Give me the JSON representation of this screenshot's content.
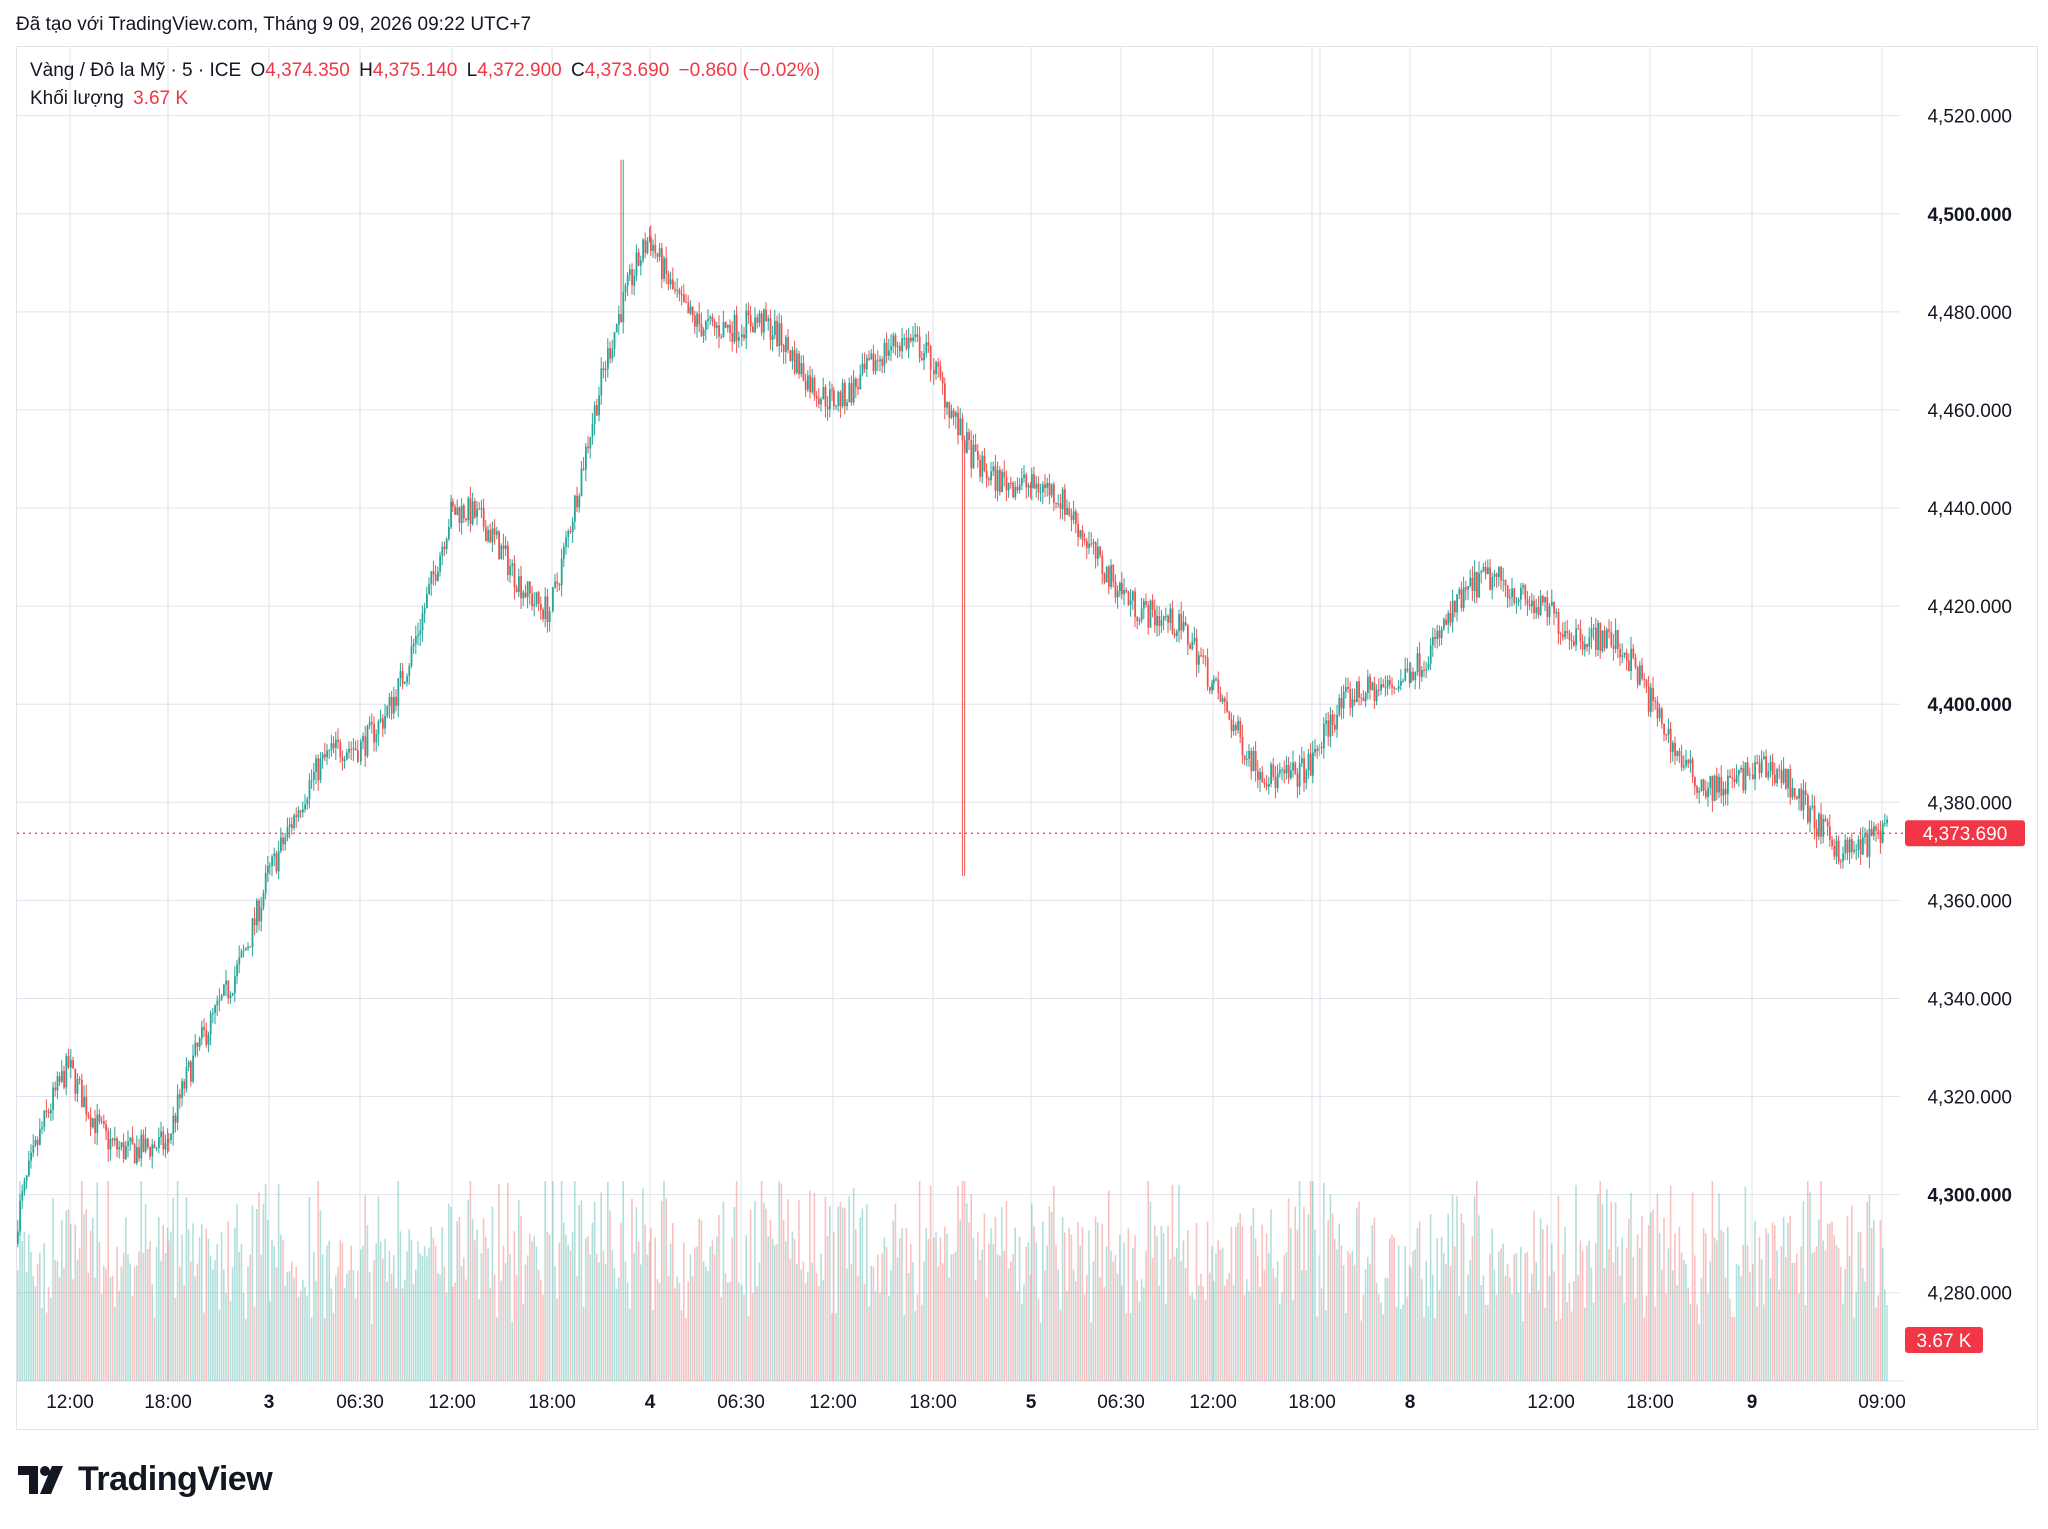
{
  "header": {
    "created_with": "Đã tạo với TradingView.com, Tháng 9 09, 2026 09:22 UTC+7"
  },
  "legend": {
    "symbol": "Vàng / Đô la Mỹ · 5 · ICE",
    "open_label": "O",
    "open_value": "4,374.350",
    "high_label": "H",
    "high_value": "4,375.140",
    "low_label": "L",
    "low_value": "4,372.900",
    "close_label": "C",
    "close_value": "4,373.690",
    "change": "−0.860 (−0.02%)",
    "volume_label": "Khối lượng",
    "volume_value": "3.67 K"
  },
  "brand": {
    "name": "TradingView"
  },
  "colors": {
    "up": "#26a69a",
    "down": "#ef5350",
    "grid": "#e0e3eb",
    "price_tag": "#f23645",
    "text": "#131722"
  },
  "chart_data": {
    "type": "candlestick",
    "title": "Vàng / Đô la Mỹ · 5 · ICE",
    "ylim": [
      4262,
      4534
    ],
    "y_ticks": [
      {
        "value": 4280,
        "label": "4,280.000",
        "bold": false
      },
      {
        "value": 4300,
        "label": "4,300.000",
        "bold": true
      },
      {
        "value": 4320,
        "label": "4,320.000",
        "bold": false
      },
      {
        "value": 4340,
        "label": "4,340.000",
        "bold": false
      },
      {
        "value": 4360,
        "label": "4,360.000",
        "bold": false
      },
      {
        "value": 4380,
        "label": "4,380.000",
        "bold": false
      },
      {
        "value": 4400,
        "label": "4,400.000",
        "bold": true
      },
      {
        "value": 4420,
        "label": "4,420.000",
        "bold": false
      },
      {
        "value": 4440,
        "label": "4,440.000",
        "bold": false
      },
      {
        "value": 4460,
        "label": "4,460.000",
        "bold": false
      },
      {
        "value": 4480,
        "label": "4,480.000",
        "bold": false
      },
      {
        "value": 4500,
        "label": "4,500.000",
        "bold": true
      },
      {
        "value": 4520,
        "label": "4,520.000",
        "bold": false
      }
    ],
    "x_ticks": [
      {
        "label": "12:00",
        "bold": false
      },
      {
        "label": "18:00",
        "bold": false
      },
      {
        "label": "3",
        "bold": true
      },
      {
        "label": "06:30",
        "bold": false
      },
      {
        "label": "12:00",
        "bold": false
      },
      {
        "label": "18:00",
        "bold": false
      },
      {
        "label": "4",
        "bold": true
      },
      {
        "label": "06:30",
        "bold": false
      },
      {
        "label": "12:00",
        "bold": false
      },
      {
        "label": "18:00",
        "bold": false
      },
      {
        "label": "5",
        "bold": true
      },
      {
        "label": "06:30",
        "bold": false
      },
      {
        "label": "12:00",
        "bold": false
      },
      {
        "label": "18:00",
        "bold": false
      },
      {
        "label": "8",
        "bold": true
      },
      {
        "label": "12:00",
        "bold": false
      },
      {
        "label": "18:00",
        "bold": false
      },
      {
        "label": "9",
        "bold": true
      },
      {
        "label": "09:00",
        "bold": false
      }
    ],
    "last_price": 4373.69,
    "last_price_label": "4,373.690",
    "last_volume_label": "3.67 K",
    "price_path": [
      {
        "x": "start",
        "y": 4290
      },
      {
        "x": "12:00",
        "y": 4325
      },
      {
        "x": "18:00",
        "y": 4305
      },
      {
        "x": "3",
        "y": 4370
      },
      {
        "x": "06:30",
        "y": 4390
      },
      {
        "x": "12:00",
        "y": 4435
      },
      {
        "x": "18:00",
        "y": 4425
      },
      {
        "x": "4",
        "y": 4495
      },
      {
        "x": "06:30",
        "y": 4473
      },
      {
        "x": "12:00",
        "y": 4468
      },
      {
        "x": "18:00",
        "y": 4468
      },
      {
        "x": "5",
        "y": 4440
      },
      {
        "x": "06:30",
        "y": 4430
      },
      {
        "x": "12:00",
        "y": 4400
      },
      {
        "x": "18:00",
        "y": 4385
      },
      {
        "x": "8",
        "y": 4413
      },
      {
        "x": "12:00",
        "y": 4425
      },
      {
        "x": "18:00",
        "y": 4398
      },
      {
        "x": "9",
        "y": 4382
      },
      {
        "x": "09:00",
        "y": 4373.69
      }
    ],
    "extremes": {
      "high": 4511,
      "low_after_gap": 4365
    }
  }
}
